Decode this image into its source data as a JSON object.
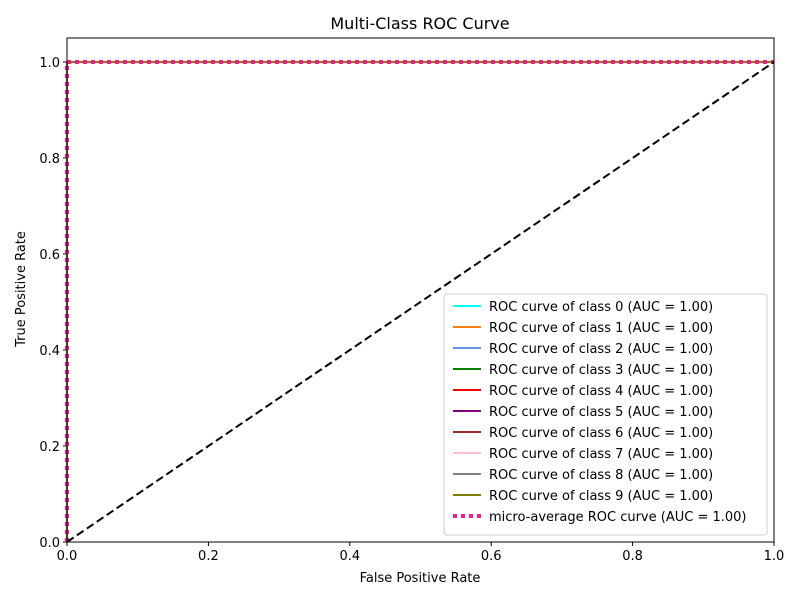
{
  "chart_data": {
    "type": "line",
    "title": "Multi-Class ROC Curve",
    "xlabel": "False Positive Rate",
    "ylabel": "True Positive Rate",
    "xlim": [
      0.0,
      1.0
    ],
    "ylim": [
      0.0,
      1.05
    ],
    "xticks": [
      0.0,
      0.2,
      0.4,
      0.6,
      0.8,
      1.0
    ],
    "yticks": [
      0.0,
      0.2,
      0.4,
      0.6,
      0.8,
      1.0
    ],
    "xtick_labels": [
      "0.0",
      "0.2",
      "0.4",
      "0.6",
      "0.8",
      "1.0"
    ],
    "ytick_labels": [
      "0.0",
      "0.2",
      "0.4",
      "0.6",
      "0.8",
      "1.0"
    ],
    "grid": false,
    "legend_position": "lower-right",
    "series": [
      {
        "name": "ROC curve of class 0 (AUC = 1.00)",
        "color": "#00ffff",
        "style": "solid",
        "x": [
          0,
          0,
          1
        ],
        "y": [
          0,
          1,
          1
        ]
      },
      {
        "name": "ROC curve of class 1 (AUC = 1.00)",
        "color": "#ff7f0e",
        "style": "solid",
        "x": [
          0,
          0,
          1
        ],
        "y": [
          0,
          1,
          1
        ]
      },
      {
        "name": "ROC curve of class 2 (AUC = 1.00)",
        "color": "#6495ed",
        "style": "solid",
        "x": [
          0,
          0,
          1
        ],
        "y": [
          0,
          1,
          1
        ]
      },
      {
        "name": "ROC curve of class 3 (AUC = 1.00)",
        "color": "#008000",
        "style": "solid",
        "x": [
          0,
          0,
          1
        ],
        "y": [
          0,
          1,
          1
        ]
      },
      {
        "name": "ROC curve of class 4 (AUC = 1.00)",
        "color": "#ff0000",
        "style": "solid",
        "x": [
          0,
          0,
          1
        ],
        "y": [
          0,
          1,
          1
        ]
      },
      {
        "name": "ROC curve of class 5 (AUC = 1.00)",
        "color": "#800080",
        "style": "solid",
        "x": [
          0,
          0,
          1
        ],
        "y": [
          0,
          1,
          1
        ]
      },
      {
        "name": "ROC curve of class 6 (AUC = 1.00)",
        "color": "#a52a2a",
        "style": "solid",
        "x": [
          0,
          0,
          1
        ],
        "y": [
          0,
          1,
          1
        ]
      },
      {
        "name": "ROC curve of class 7 (AUC = 1.00)",
        "color": "#ffc0cb",
        "style": "solid",
        "x": [
          0,
          0,
          1
        ],
        "y": [
          0,
          1,
          1
        ]
      },
      {
        "name": "ROC curve of class 8 (AUC = 1.00)",
        "color": "#808080",
        "style": "solid",
        "x": [
          0,
          0,
          1
        ],
        "y": [
          0,
          1,
          1
        ]
      },
      {
        "name": "ROC curve of class 9 (AUC = 1.00)",
        "color": "#808000",
        "style": "solid",
        "x": [
          0,
          0,
          1
        ],
        "y": [
          0,
          1,
          1
        ]
      },
      {
        "name": "micro-average ROC curve (AUC = 1.00)",
        "color": "#ff1493",
        "style": "dotted",
        "x": [
          0,
          0,
          1
        ],
        "y": [
          0,
          1,
          1
        ]
      }
    ],
    "reference_line": {
      "color": "#000000",
      "style": "dashed",
      "x": [
        0,
        1
      ],
      "y": [
        0,
        1
      ]
    }
  }
}
